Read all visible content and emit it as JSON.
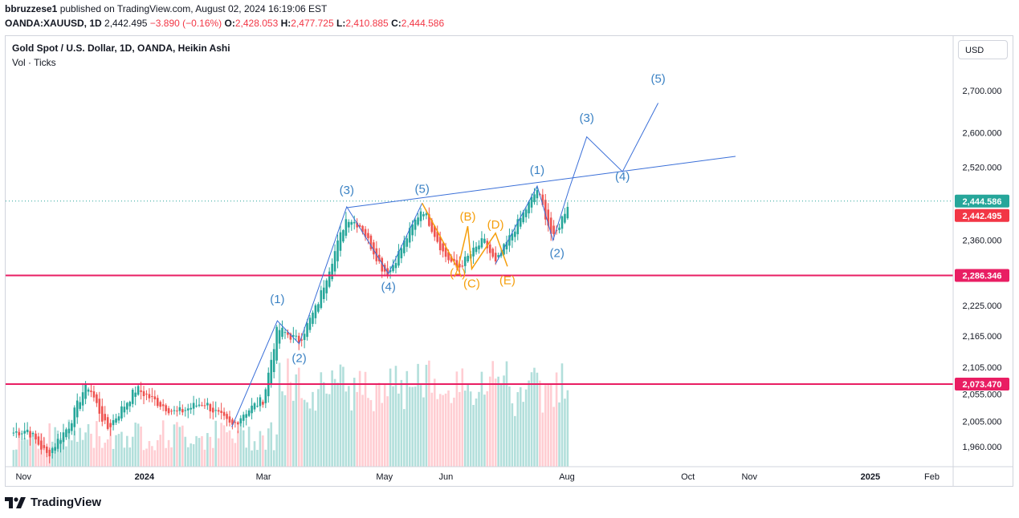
{
  "header": {
    "publisher": "bbruzzese1",
    "published_text": "published on TradingView.com, August 02, 2024 16:19:06 EST",
    "symbol": "OANDA:XAUUSD, 1D",
    "price": "2,442.495",
    "change": "−3.890 (−0.16%)",
    "o_label": "O:",
    "o_value": "2,428.053",
    "h_label": "H:",
    "h_value": "2,477.725",
    "l_label": "L:",
    "l_value": "2,410.885",
    "c_label": "C:",
    "c_value": "2,444.586"
  },
  "legend": {
    "title": "Gold Spot / U.S. Dollar, 1D, OANDA, Heikin Ashi",
    "subtitle": "Vol · Ticks"
  },
  "currency": "USD",
  "footer": {
    "brand": "TradingView"
  },
  "colors": {
    "up": "#26a69a",
    "down": "#ef5350",
    "wave_blue": "#3b82c4",
    "wave_orange": "#f59e0b",
    "hline": "#e91e63",
    "trend": "#3a6fd8"
  },
  "chart_data": {
    "type": "candlestick",
    "title": "Gold Spot / U.S. Dollar, 1D, OANDA, Heikin Ashi",
    "y_ticks": [
      "2,700.000",
      "2,600.000",
      "2,520.000",
      "2,360.000",
      "2,225.000",
      "2,165.000",
      "2,105.000",
      "2,055.000",
      "2,005.000",
      "1,960.000"
    ],
    "x_ticks": [
      "Nov",
      "2024",
      "Mar",
      "May",
      "Jun",
      "Aug",
      "Oct",
      "Nov",
      "2025",
      "Feb"
    ],
    "price_labels": [
      {
        "value": "2,444.586",
        "kind": "close"
      },
      {
        "value": "2,442.495",
        "kind": "last"
      },
      {
        "value": "2,286.346",
        "kind": "hline"
      },
      {
        "value": "2,073.470",
        "kind": "hline"
      }
    ],
    "horizontal_levels": [
      2286.346,
      2073.47
    ],
    "wave_labels_blue": [
      "(1)",
      "(2)",
      "(3)",
      "(4)",
      "(5)",
      "(1)",
      "(2)",
      "(3)",
      "(4)",
      "(5)"
    ],
    "wave_labels_orange": [
      "(A)",
      "(B)",
      "(C)",
      "(D)",
      "(E)"
    ],
    "price_series": [
      [
        "2023-10-27",
        1985
      ],
      [
        "2023-11-03",
        1990
      ],
      [
        "2023-11-13",
        1945
      ],
      [
        "2023-11-24",
        1998
      ],
      [
        "2023-12-01",
        2060
      ],
      [
        "2023-12-04",
        2070
      ],
      [
        "2023-12-13",
        1990
      ],
      [
        "2023-12-28",
        2065
      ],
      [
        "2024-01-05",
        2045
      ],
      [
        "2024-01-17",
        2020
      ],
      [
        "2024-01-31",
        2040
      ],
      [
        "2024-02-14",
        1995
      ],
      [
        "2024-02-20",
        2020
      ],
      [
        "2024-03-01",
        2045
      ],
      [
        "2024-03-08",
        2180
      ],
      [
        "2024-03-19",
        2155
      ],
      [
        "2024-03-28",
        2225
      ],
      [
        "2024-04-12",
        2410
      ],
      [
        "2024-04-19",
        2390
      ],
      [
        "2024-04-30",
        2300
      ],
      [
        "2024-05-03",
        2290
      ],
      [
        "2024-05-20",
        2430
      ],
      [
        "2024-05-31",
        2330
      ],
      [
        "2024-06-07",
        2300
      ],
      [
        "2024-06-10",
        2315
      ],
      [
        "2024-06-20",
        2360
      ],
      [
        "2024-06-26",
        2310
      ],
      [
        "2024-07-05",
        2380
      ],
      [
        "2024-07-17",
        2470
      ],
      [
        "2024-07-25",
        2360
      ],
      [
        "2024-08-02",
        2444
      ]
    ]
  }
}
